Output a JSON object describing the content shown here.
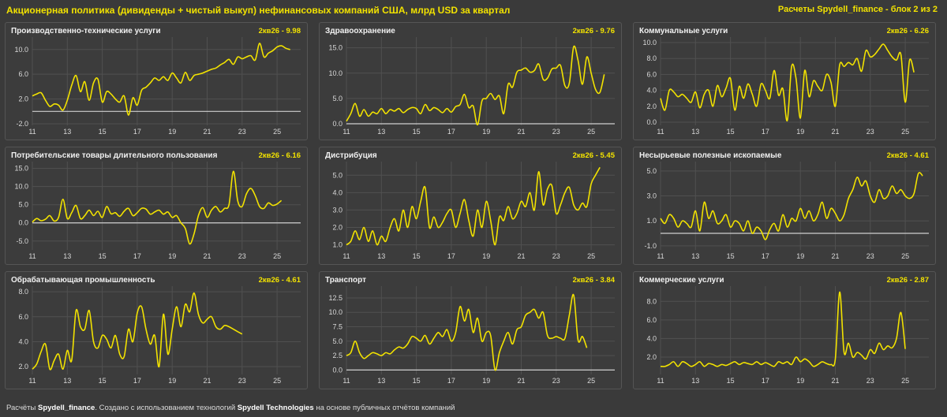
{
  "header": {
    "title": "Акционерная политика (дивиденды + чистый выкуп) нефинансовых компаний США, млрд USD за квартал",
    "right_note": "Расчеты Spydell_finance - блок 2 из 2"
  },
  "footer": {
    "prefix": "Расчёты ",
    "brand1": "Spydell_finance",
    "mid": ". Создано с использованием технологий ",
    "brand2": "Spydell Technologies",
    "suffix": " на основе публичных отчётов компаний"
  },
  "colors": {
    "line": "#f2e200",
    "zero": "#cfcfcf",
    "grid": "#505050",
    "tick": "#d8d8d8"
  },
  "x_ticks": [
    "11",
    "13",
    "15",
    "17",
    "19",
    "21",
    "23",
    "25"
  ],
  "chart_data": [
    {
      "type": "line",
      "title": "Производственно-технические услуги",
      "badge": "2кв26 - 9.98",
      "ylim": [
        -2,
        11.5
      ],
      "yticks": [
        -2.0,
        2.0,
        6.0,
        10.0
      ],
      "ytick_labels": [
        "-2.0",
        "2.0",
        "6.0",
        "10.0"
      ],
      "zero_line": true,
      "series": [
        {
          "x_start": 2011,
          "x_step": 0.25,
          "values": [
            2.5,
            2.8,
            3.0,
            1.8,
            0.8,
            1.2,
            1.0,
            0.2,
            1.8,
            4.2,
            5.8,
            3.2,
            4.8,
            1.8,
            4.6,
            5.2,
            1.5,
            3.2,
            2.8,
            2.0,
            1.5,
            2.5,
            -0.6,
            2.2,
            1.0,
            3.4,
            3.9,
            4.6,
            5.4,
            5.0,
            5.6,
            5.0,
            6.2,
            5.4,
            4.6,
            6.3,
            5.0,
            5.8,
            6.0,
            6.2,
            6.5,
            6.8,
            7.0,
            7.5,
            7.9,
            8.4,
            7.6,
            8.8,
            8.5,
            8.8,
            9.0,
            8.3,
            11.0,
            8.8,
            9.4,
            9.8,
            10.4,
            10.6,
            10.2,
            9.98
          ]
        }
      ]
    },
    {
      "type": "line",
      "title": "Здравоохранение",
      "badge": "2кв26 - 9.76",
      "ylim": [
        0,
        16.5
      ],
      "yticks": [
        0.0,
        5.0,
        10.0,
        15.0
      ],
      "ytick_labels": [
        "0.0",
        "5.0",
        "10.0",
        "15.0"
      ],
      "zero_line": true,
      "series": [
        {
          "x_start": 2011,
          "x_step": 0.25,
          "values": [
            0.5,
            2.0,
            4.0,
            1.5,
            2.8,
            1.5,
            2.3,
            2.0,
            3.0,
            2.0,
            2.8,
            2.5,
            3.0,
            2.2,
            2.8,
            3.2,
            3.0,
            2.0,
            3.8,
            2.6,
            3.2,
            2.8,
            2.2,
            3.0,
            2.3,
            3.4,
            3.8,
            5.8,
            3.2,
            3.5,
            -0.2,
            4.5,
            5.0,
            6.0,
            4.8,
            5.5,
            2.0,
            7.8,
            7.2,
            10.2,
            10.6,
            11.0,
            10.2,
            10.5,
            11.8,
            8.8,
            9.0,
            10.8,
            11.0,
            11.5,
            7.5,
            8.0,
            15.2,
            12.5,
            7.8,
            13.2,
            10.0,
            6.8,
            6.2,
            9.76
          ]
        }
      ]
    },
    {
      "type": "line",
      "title": "Коммунальные услуги",
      "badge": "2кв26 - 6.26",
      "ylim": [
        -0.2,
        10.3
      ],
      "yticks": [
        0.0,
        2.0,
        4.0,
        6.0,
        8.0,
        10.0
      ],
      "ytick_labels": [
        "0.0",
        "2.0",
        "4.0",
        "6.0",
        "8.0",
        "10.0"
      ],
      "zero_line": false,
      "series": [
        {
          "x_start": 2011,
          "x_step": 0.25,
          "values": [
            3.0,
            1.5,
            4.0,
            3.8,
            3.2,
            3.5,
            3.0,
            2.5,
            3.8,
            1.8,
            3.5,
            4.0,
            2.0,
            4.6,
            3.2,
            4.3,
            5.5,
            1.5,
            4.5,
            3.0,
            4.8,
            3.5,
            2.0,
            4.8,
            4.0,
            3.0,
            6.5,
            3.4,
            4.2,
            0.2,
            7.0,
            5.5,
            0.5,
            6.5,
            3.2,
            5.2,
            4.5,
            4.0,
            6.0,
            5.0,
            2.0,
            7.2,
            7.0,
            7.5,
            7.2,
            8.0,
            6.4,
            9.0,
            8.2,
            8.5,
            9.2,
            9.8,
            9.0,
            8.2,
            7.8,
            8.5,
            2.5,
            7.8,
            6.26
          ]
        }
      ]
    },
    {
      "type": "line",
      "title": "Потребительские товары длительного пользования",
      "badge": "2кв26 - 6.16",
      "ylim": [
        -7,
        16
      ],
      "yticks": [
        -5.0,
        0.0,
        5.0,
        10.0,
        15.0
      ],
      "ytick_labels": [
        "-5.0",
        "0.0",
        "5.0",
        "10.0",
        "15.0"
      ],
      "zero_line": true,
      "series": [
        {
          "x_start": 2011,
          "x_step": 0.25,
          "values": [
            0.2,
            1.2,
            0.6,
            1.0,
            2.0,
            0.5,
            1.5,
            6.5,
            1.2,
            2.8,
            4.8,
            1.2,
            2.0,
            3.5,
            2.0,
            3.2,
            1.5,
            4.5,
            2.5,
            2.8,
            1.8,
            3.2,
            4.0,
            2.0,
            2.8,
            4.0,
            3.8,
            2.4,
            3.0,
            3.5,
            2.4,
            3.0,
            1.5,
            2.0,
            0.0,
            -1.5,
            -5.8,
            -3.0,
            2.0,
            4.2,
            1.5,
            3.5,
            4.5,
            3.0,
            4.0,
            5.0,
            14.2,
            6.0,
            4.5,
            8.0,
            9.5,
            7.5,
            4.5,
            4.0,
            5.5,
            4.8,
            5.2,
            6.16
          ]
        }
      ]
    },
    {
      "type": "line",
      "title": "Дистрибуция",
      "badge": "2кв26 - 5.45",
      "ylim": [
        0.8,
        5.6
      ],
      "yticks": [
        1.0,
        2.0,
        3.0,
        4.0,
        5.0
      ],
      "ytick_labels": [
        "1.0",
        "2.0",
        "3.0",
        "4.0",
        "5.0"
      ],
      "zero_line": false,
      "series": [
        {
          "x_start": 2011,
          "x_step": 0.25,
          "values": [
            1.0,
            1.2,
            1.8,
            1.3,
            2.0,
            1.2,
            1.8,
            1.0,
            1.5,
            1.2,
            2.0,
            2.5,
            1.8,
            3.0,
            2.0,
            3.2,
            2.5,
            3.5,
            4.3,
            2.0,
            2.6,
            2.0,
            2.3,
            2.8,
            3.0,
            2.0,
            2.8,
            3.6,
            2.4,
            1.5,
            3.0,
            2.0,
            3.5,
            2.4,
            1.0,
            2.6,
            2.4,
            3.2,
            2.5,
            2.8,
            3.5,
            3.2,
            4.0,
            3.0,
            5.2,
            3.3,
            4.2,
            4.4,
            2.8,
            3.3,
            4.0,
            4.3,
            3.3,
            3.0,
            3.4,
            3.2,
            4.5,
            5.0,
            5.45
          ]
        }
      ]
    },
    {
      "type": "line",
      "title": "Несырьевые полезные ископаемые",
      "badge": "2кв26 - 4.61",
      "ylim": [
        -1.2,
        5.5
      ],
      "yticks": [
        -1.0,
        1.0,
        3.0,
        5.0
      ],
      "ytick_labels": [
        "-1.0",
        "1.0",
        "3.0",
        "5.0"
      ],
      "zero_line": true,
      "series": [
        {
          "x_start": 2011,
          "x_step": 0.25,
          "values": [
            1.2,
            0.8,
            1.5,
            1.2,
            0.5,
            1.0,
            0.8,
            0.5,
            1.8,
            0.2,
            2.5,
            1.2,
            1.8,
            0.8,
            1.0,
            1.5,
            0.5,
            1.0,
            0.8,
            0.2,
            1.0,
            0.0,
            0.5,
            0.2,
            -0.5,
            0.3,
            0.8,
            0.2,
            1.5,
            0.5,
            1.2,
            1.0,
            2.0,
            1.2,
            1.8,
            1.0,
            1.5,
            2.5,
            1.2,
            2.0,
            1.6,
            1.0,
            1.5,
            2.8,
            3.5,
            4.5,
            3.8,
            4.2,
            3.0,
            2.5,
            3.5,
            2.8,
            3.0,
            3.8,
            3.2,
            3.5,
            3.0,
            2.8,
            3.2,
            4.8,
            4.61
          ]
        }
      ]
    },
    {
      "type": "line",
      "title": "Обрабатывающая промышленность",
      "badge": "2кв26 - 4.61",
      "ylim": [
        1.5,
        8.2
      ],
      "yticks": [
        2.0,
        4.0,
        6.0,
        8.0
      ],
      "ytick_labels": [
        "2.0",
        "4.0",
        "6.0",
        "8.0"
      ],
      "zero_line": false,
      "series": [
        {
          "x_start": 2011,
          "x_step": 0.25,
          "values": [
            1.8,
            2.2,
            3.2,
            3.8,
            1.8,
            2.5,
            3.0,
            1.8,
            3.3,
            2.5,
            6.5,
            5.2,
            5.0,
            6.5,
            4.0,
            3.5,
            4.5,
            4.2,
            3.5,
            4.5,
            3.0,
            2.8,
            5.0,
            4.0,
            6.3,
            6.8,
            5.0,
            3.8,
            4.5,
            2.0,
            6.2,
            3.0,
            5.0,
            6.8,
            5.2,
            7.0,
            6.4,
            7.9,
            6.2,
            5.5,
            5.8,
            6.0,
            5.2,
            5.0,
            5.3,
            5.2,
            5.0,
            4.8,
            4.61
          ]
        }
      ]
    },
    {
      "type": "line",
      "title": "Транспорт",
      "badge": "2кв26 - 3.84",
      "ylim": [
        -0.5,
        14
      ],
      "yticks": [
        0.0,
        2.5,
        5.0,
        7.5,
        10.0,
        12.5
      ],
      "ytick_labels": [
        "0.0",
        "2.5",
        "5.0",
        "7.5",
        "10.0",
        "12.5"
      ],
      "zero_line": true,
      "series": [
        {
          "x_start": 2011,
          "x_step": 0.25,
          "values": [
            2.5,
            3.0,
            5.0,
            3.0,
            2.0,
            2.5,
            3.0,
            2.8,
            2.5,
            3.0,
            2.8,
            3.5,
            4.0,
            3.8,
            4.5,
            5.8,
            5.5,
            5.0,
            6.0,
            4.5,
            5.5,
            6.5,
            5.8,
            7.0,
            5.0,
            6.5,
            11.0,
            8.5,
            10.5,
            6.5,
            9.0,
            5.0,
            6.5,
            6.0,
            0.0,
            3.0,
            5.0,
            6.5,
            4.5,
            7.0,
            7.5,
            9.5,
            10.0,
            10.5,
            9.0,
            10.0,
            6.0,
            5.5,
            5.8,
            5.5,
            5.5,
            9.5,
            13.0,
            5.2,
            5.8,
            3.84
          ]
        }
      ]
    },
    {
      "type": "line",
      "title": "Коммерческие услуги",
      "badge": "2кв26 - 2.87",
      "ylim": [
        0.3,
        9.3
      ],
      "yticks": [
        2.0,
        4.0,
        6.0,
        8.0
      ],
      "ytick_labels": [
        "2.0",
        "4.0",
        "6.0",
        "8.0"
      ],
      "zero_line": false,
      "series": [
        {
          "x_start": 2011,
          "x_step": 0.25,
          "values": [
            1.0,
            1.0,
            1.2,
            1.5,
            1.0,
            1.5,
            1.3,
            1.0,
            1.2,
            1.5,
            1.0,
            1.3,
            1.2,
            1.0,
            1.2,
            1.1,
            1.3,
            1.5,
            1.2,
            1.4,
            1.3,
            1.2,
            1.5,
            1.2,
            1.4,
            1.2,
            1.0,
            1.5,
            1.3,
            1.5,
            1.2,
            2.0,
            1.5,
            1.8,
            1.5,
            1.0,
            1.2,
            1.5,
            1.3,
            1.2,
            1.8,
            9.0,
            2.5,
            3.5,
            2.0,
            2.5,
            2.2,
            1.8,
            2.8,
            2.4,
            3.5,
            2.8,
            3.2,
            3.0,
            4.0,
            6.8,
            2.87
          ]
        }
      ]
    }
  ]
}
